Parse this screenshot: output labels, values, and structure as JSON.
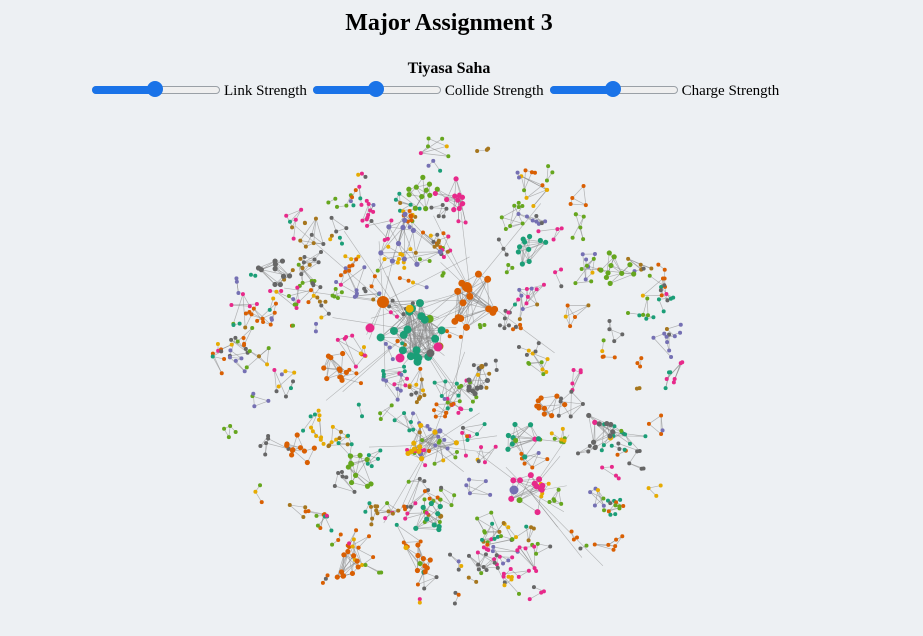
{
  "header": {
    "title": "Major Assignment 3",
    "author": "Tiyasa Saha"
  },
  "controls": [
    {
      "label": "Link Strength",
      "value": 0.5
    },
    {
      "label": "Collide Strength",
      "value": 0.5
    },
    {
      "label": "Charge Strength",
      "value": 0.5
    }
  ],
  "graph": {
    "colors": [
      "#d95f02",
      "#1b9e77",
      "#7570b3",
      "#e7298a",
      "#66a61e",
      "#e6ab02",
      "#666666",
      "#a6761d"
    ],
    "link_color": "#888888"
  }
}
